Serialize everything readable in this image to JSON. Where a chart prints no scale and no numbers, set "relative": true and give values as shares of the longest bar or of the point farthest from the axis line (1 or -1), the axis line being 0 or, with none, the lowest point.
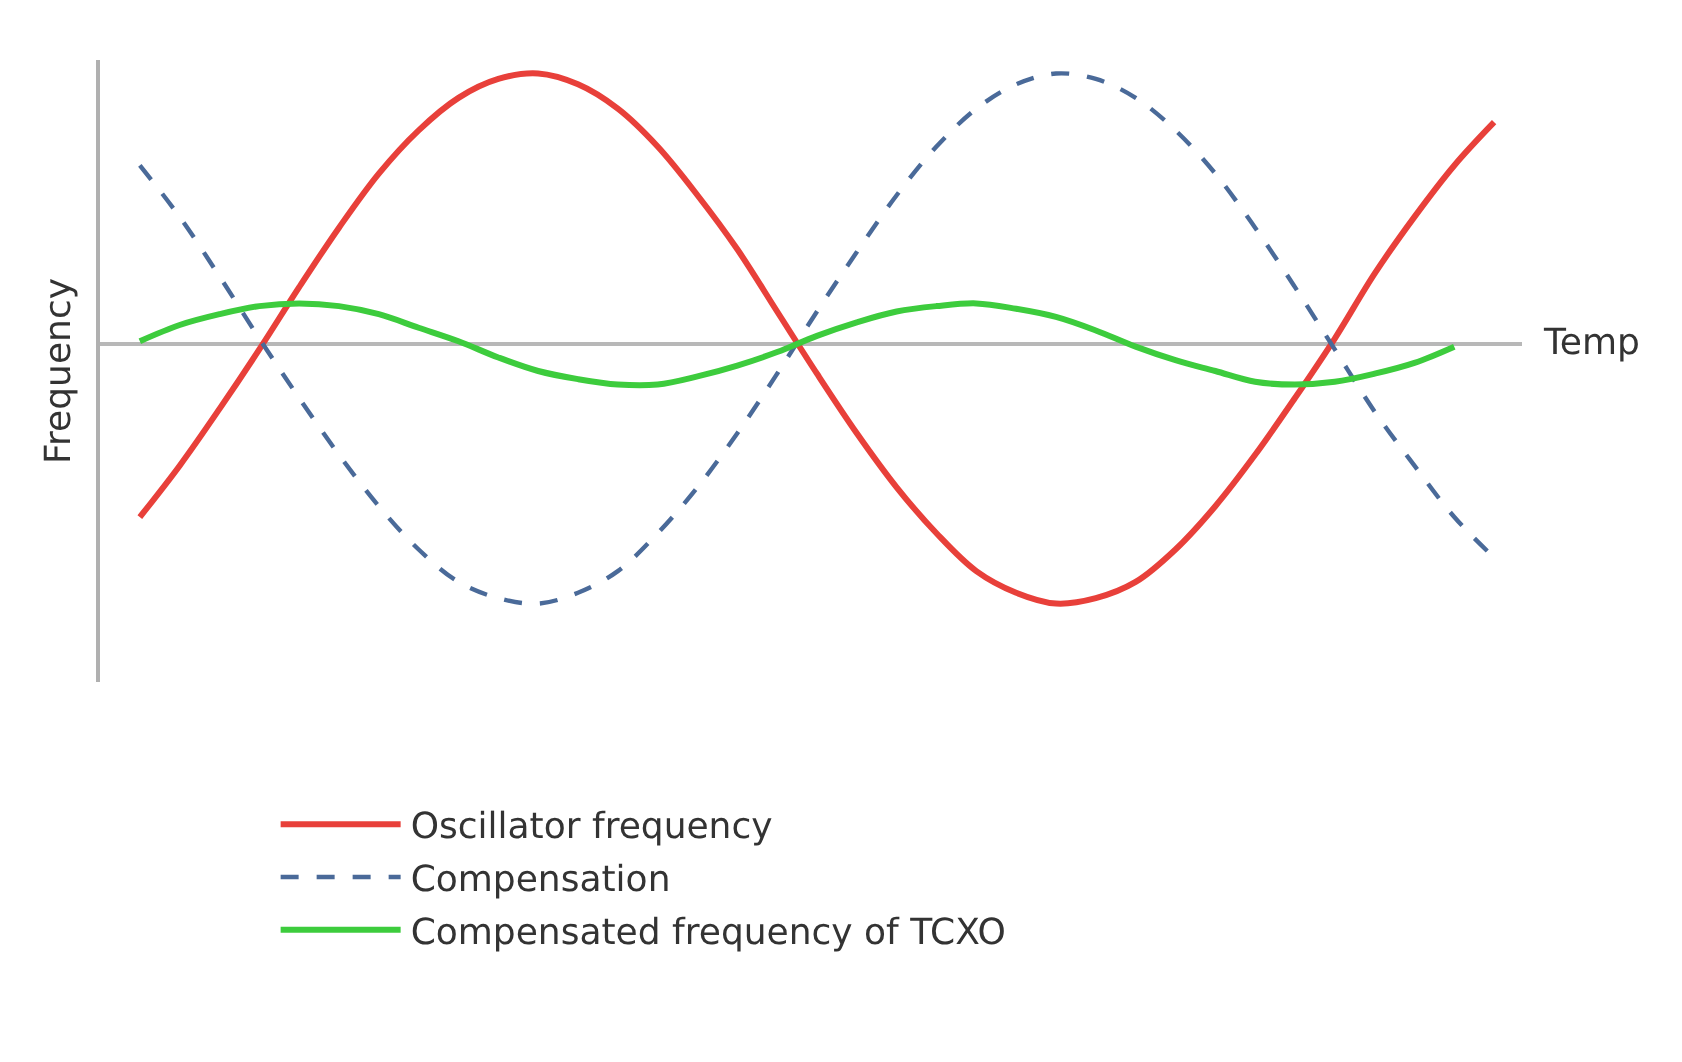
{
  "chart_data": {
    "type": "line",
    "relative": true,
    "xlabel": "Temp",
    "ylabel": "Frequency",
    "legend": "bottom",
    "categories": [
      null,
      null,
      null,
      null,
      null,
      null,
      null,
      null,
      null,
      null,
      null,
      null,
      null,
      null,
      null,
      null,
      null,
      null,
      null,
      null,
      null,
      null,
      null,
      null,
      null,
      null,
      null,
      null,
      null,
      null,
      null,
      null,
      null,
      null,
      null
    ],
    "series": [
      {
        "name": "Oscillator frequency",
        "color": "#e8403a",
        "line_style": "solid",
        "values": [
          -0.64,
          -0.45,
          -0.24,
          -0.02,
          0.21,
          0.43,
          0.63,
          0.79,
          0.91,
          0.98,
          1.0,
          0.96,
          0.87,
          0.73,
          0.55,
          0.35,
          0.12,
          -0.11,
          -0.33,
          -0.53,
          -0.7,
          -0.84,
          -0.92,
          -0.96,
          -0.94,
          -0.88,
          -0.76,
          -0.6,
          -0.41,
          -0.2,
          0.02,
          0.26,
          0.47,
          0.66,
          0.82
        ]
      },
      {
        "name": "Compensation",
        "color": "#4a6a99",
        "line_style": "dashed",
        "values": [
          0.66,
          0.47,
          0.25,
          0.02,
          -0.2,
          -0.41,
          -0.6,
          -0.76,
          -0.88,
          -0.94,
          -0.96,
          -0.92,
          -0.84,
          -0.7,
          -0.53,
          -0.33,
          -0.11,
          0.12,
          0.34,
          0.55,
          0.73,
          0.87,
          0.96,
          1.0,
          0.98,
          0.91,
          0.79,
          0.63,
          0.43,
          0.21,
          -0.02,
          -0.25,
          -0.45,
          -0.64,
          -0.79
        ]
      },
      {
        "name": "Compensated frequency of TCXO",
        "color": "#3dcc3d",
        "line_style": "solid",
        "values": [
          0.01,
          0.07,
          0.11,
          0.14,
          0.15,
          0.14,
          0.11,
          0.06,
          0.01,
          -0.05,
          -0.1,
          -0.13,
          -0.15,
          -0.15,
          -0.12,
          -0.08,
          -0.03,
          0.03,
          0.08,
          0.12,
          0.14,
          0.15,
          0.13,
          0.1,
          0.05,
          -0.01,
          -0.06,
          -0.1,
          -0.14,
          -0.15,
          -0.14,
          -0.11,
          -0.07,
          -0.01,
          null
        ]
      }
    ]
  }
}
